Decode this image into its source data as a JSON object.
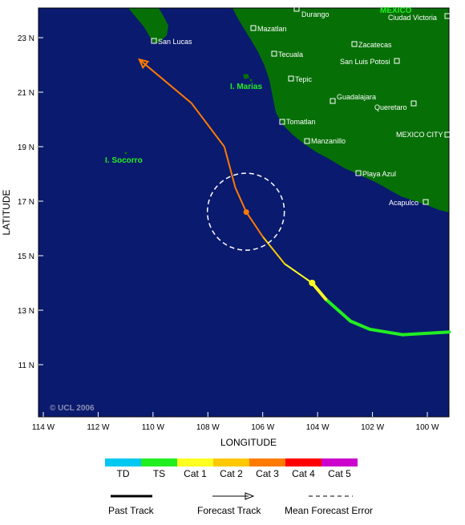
{
  "map": {
    "axis_x_label": "LONGITUDE",
    "axis_y_label": "LATITUDE",
    "copyright": "© UCL 2006",
    "lat_ticks": [
      "23 N",
      "21 N",
      "19 N",
      "17 N",
      "15 N",
      "13 N",
      "11 N"
    ],
    "lon_ticks": [
      "114 W",
      "112 W",
      "110 W",
      "108 W",
      "106 W",
      "104 W",
      "102 W",
      "100 W"
    ],
    "ocean_color": "#0a1a6e",
    "land_color": "#067006",
    "cities": [
      "Durango",
      "Ciudad Victoria",
      "Mazatlan",
      "San Lucas",
      "Zacatecas",
      "Tecuala",
      "San Luis Potosi",
      "Tepic",
      "Guadalajara",
      "Queretaro",
      "Tomatlan",
      "Manzanillo",
      "MEXICO CITY",
      "Playa Azul",
      "Acapulco"
    ],
    "islands": [
      "I. Marias",
      "I. Socorro"
    ],
    "region_label": "MEXICO"
  },
  "track": {
    "past": [
      {
        "lon": -99.2,
        "lat": 12.2,
        "cat": "TS"
      },
      {
        "lon": -100.9,
        "lat": 12.1,
        "cat": "TS"
      },
      {
        "lon": -102.1,
        "lat": 12.3,
        "cat": "TS"
      },
      {
        "lon": -102.8,
        "lat": 12.6,
        "cat": "TS"
      },
      {
        "lon": -103.7,
        "lat": 13.4,
        "cat": "TS"
      },
      {
        "lon": -104.2,
        "lat": 14.0,
        "cat": "Cat 1"
      },
      {
        "lon": -105.2,
        "lat": 14.7,
        "cat": "Cat 1"
      },
      {
        "lon": -106.0,
        "lat": 15.7,
        "cat": "Cat 2"
      },
      {
        "lon": -106.6,
        "lat": 16.6,
        "cat": "Cat 3"
      }
    ],
    "forecast": [
      {
        "lon": -106.6,
        "lat": 16.6
      },
      {
        "lon": -107.0,
        "lat": 17.5
      },
      {
        "lon": -107.4,
        "lat": 19.0
      },
      {
        "lon": -108.6,
        "lat": 20.6
      },
      {
        "lon": -110.5,
        "lat": 22.2
      }
    ],
    "error_circle": {
      "lon": -106.6,
      "lat": 16.6
    }
  },
  "legend": {
    "scale": [
      {
        "label": "TD",
        "color": "#00c8f0"
      },
      {
        "label": "TS",
        "color": "#22ee22"
      },
      {
        "label": "Cat 1",
        "color": "#ffff22"
      },
      {
        "label": "Cat 2",
        "color": "#ffc800"
      },
      {
        "label": "Cat 3",
        "color": "#ff7a00"
      },
      {
        "label": "Cat 4",
        "color": "#ff0000"
      },
      {
        "label": "Cat 5",
        "color": "#cc00cc"
      }
    ],
    "past_track": "Past Track",
    "forecast_track": "Forecast Track",
    "mean_error": "Mean Forecast Error"
  }
}
